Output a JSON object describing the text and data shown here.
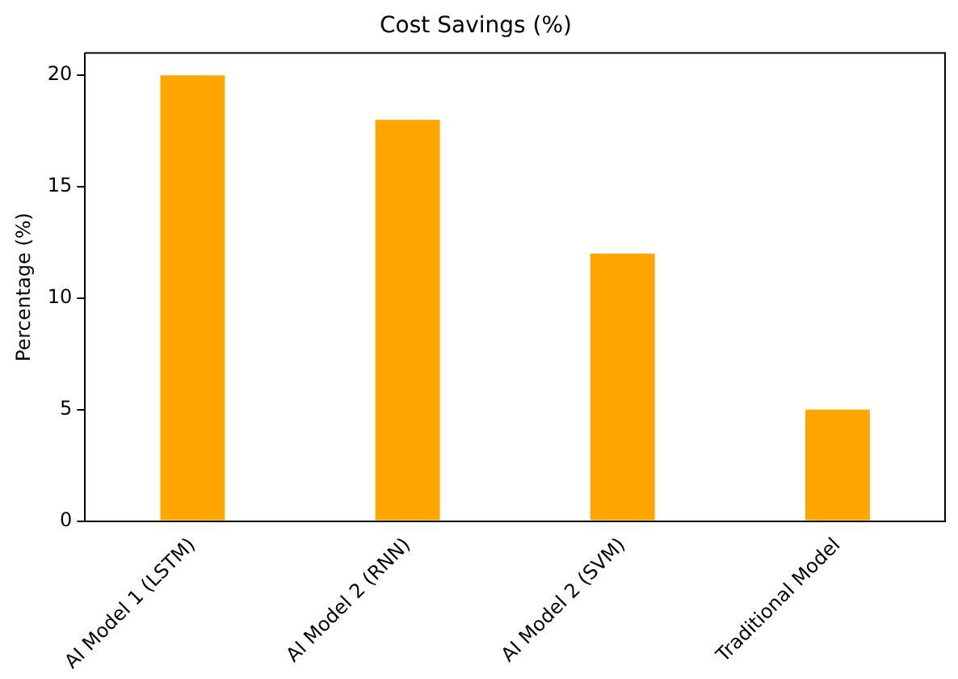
{
  "chart_data": {
    "type": "bar",
    "title": "Cost Savings (%)",
    "ylabel": "Percentage (%)",
    "categories": [
      "AI Model 1 (LSTM)",
      "AI Model 2 (RNN)",
      "AI Model 2 (SVM)",
      "Traditional Model"
    ],
    "values": [
      20,
      18,
      12,
      5
    ],
    "color": "#ffa500",
    "ylim": [
      0,
      21
    ],
    "yticks": [
      0,
      5,
      10,
      15,
      20
    ],
    "grid": false,
    "legend": false
  }
}
